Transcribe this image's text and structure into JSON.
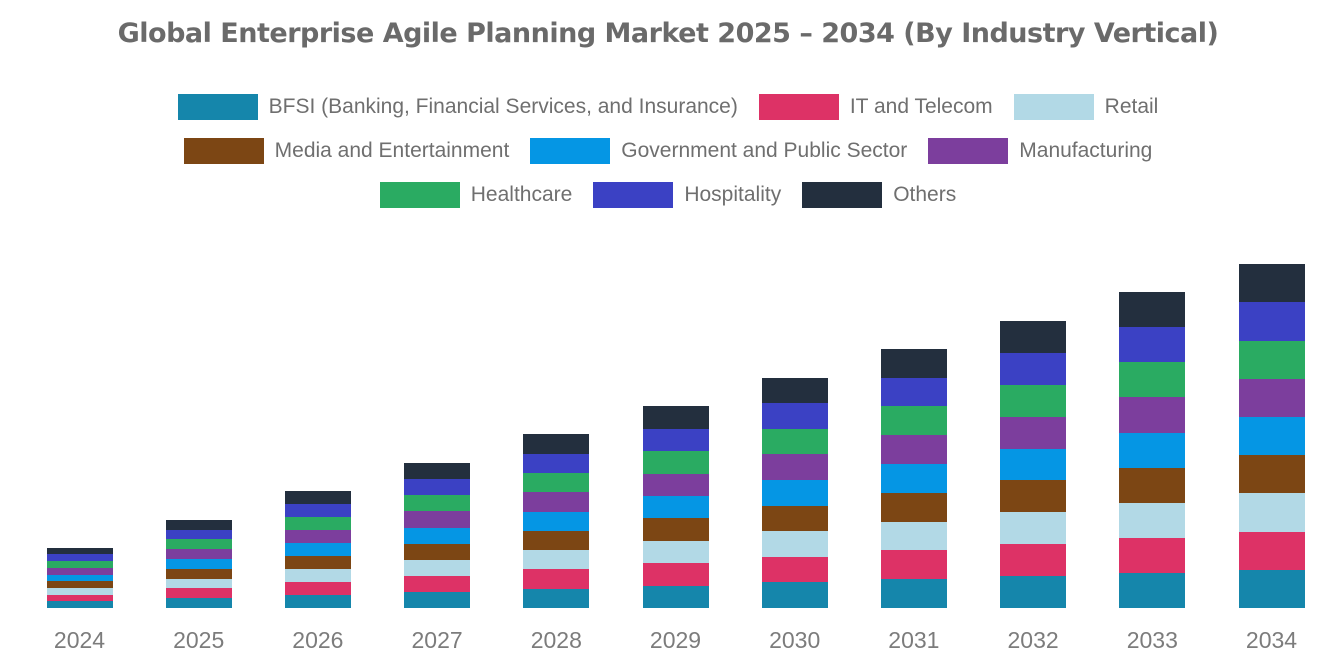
{
  "title": "Global Enterprise Agile Planning Market 2025 – 2034 (By Industry Vertical)",
  "chart_data": {
    "type": "bar",
    "stacked": true,
    "title": "Global Enterprise Agile Planning Market 2025 – 2034 (By Industry Vertical)",
    "xlabel": "",
    "ylabel": "",
    "y_axis_shown": false,
    "gridlines": false,
    "legend_position": "top",
    "units": "relative market size (no axis values shown in image)",
    "categories": [
      "2024",
      "2025",
      "2026",
      "2027",
      "2028",
      "2029",
      "2030",
      "2031",
      "2032",
      "2033",
      "2034"
    ],
    "totals": [
      60.3,
      88.2,
      117.0,
      144.9,
      173.7,
      201.6,
      230.4,
      259.2,
      287.1,
      315.9,
      343.8
    ],
    "series": [
      {
        "name": "BFSI (Banking, Financial Services, and Insurance)",
        "slug": "bfsi",
        "color": "#1586ab",
        "legend_row": 0,
        "values": [
          6.7,
          9.8,
          13.0,
          16.1,
          19.3,
          22.4,
          25.6,
          28.8,
          31.9,
          35.1,
          38.2
        ]
      },
      {
        "name": "IT and Telecom",
        "slug": "it-and-telecom",
        "color": "#dd3266",
        "legend_row": 0,
        "values": [
          6.7,
          9.8,
          13.0,
          16.1,
          19.3,
          22.4,
          25.6,
          28.8,
          31.9,
          35.1,
          38.2
        ]
      },
      {
        "name": "Retail",
        "slug": "retail",
        "color": "#b2d9e6",
        "legend_row": 0,
        "values": [
          6.7,
          9.8,
          13.0,
          16.1,
          19.3,
          22.4,
          25.6,
          28.8,
          31.9,
          35.1,
          38.2
        ]
      },
      {
        "name": "Media and Entertainment",
        "slug": "media-and-entertainment",
        "color": "#7c4614",
        "legend_row": 1,
        "values": [
          6.7,
          9.8,
          13.0,
          16.1,
          19.3,
          22.4,
          25.6,
          28.8,
          31.9,
          35.1,
          38.2
        ]
      },
      {
        "name": "Government and Public Sector",
        "slug": "government-and-public-sector",
        "color": "#0596e4",
        "legend_row": 1,
        "values": [
          6.7,
          9.8,
          13.0,
          16.1,
          19.3,
          22.4,
          25.6,
          28.8,
          31.9,
          35.1,
          38.2
        ]
      },
      {
        "name": "Manufacturing",
        "slug": "manufacturing",
        "color": "#7c3e9d",
        "legend_row": 1,
        "values": [
          6.7,
          9.8,
          13.0,
          16.1,
          19.3,
          22.4,
          25.6,
          28.8,
          31.9,
          35.1,
          38.2
        ]
      },
      {
        "name": "Healthcare",
        "slug": "healthcare",
        "color": "#2aab62",
        "legend_row": 2,
        "values": [
          6.7,
          9.8,
          13.0,
          16.1,
          19.3,
          22.4,
          25.6,
          28.8,
          31.9,
          35.1,
          38.2
        ]
      },
      {
        "name": "Hospitality",
        "slug": "hospitality",
        "color": "#3b41c4",
        "legend_row": 2,
        "values": [
          6.7,
          9.8,
          13.0,
          16.1,
          19.3,
          22.4,
          25.6,
          28.8,
          31.9,
          35.1,
          38.2
        ]
      },
      {
        "name": "Others",
        "slug": "others",
        "color": "#232f3e",
        "legend_row": 2,
        "values": [
          6.7,
          9.8,
          13.0,
          16.1,
          19.3,
          22.4,
          25.6,
          28.8,
          31.9,
          35.1,
          38.2
        ]
      }
    ]
  }
}
